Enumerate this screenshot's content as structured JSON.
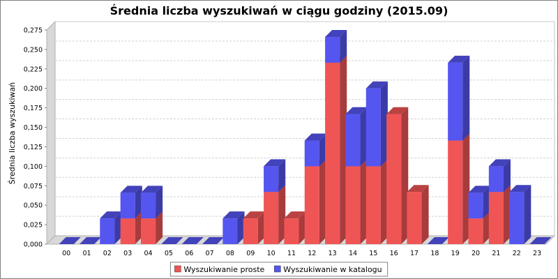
{
  "chart_data": {
    "type": "bar",
    "stacked": true,
    "three_d": true,
    "title": "Średnia liczba wyszukiwań w ciągu godziny (2015.09)",
    "xlabel": "",
    "ylabel": "Średnia liczba wyszukiwań",
    "ylim": [
      0,
      0.275
    ],
    "yticks": [
      "0,000",
      "0,025",
      "0,050",
      "0,075",
      "0,100",
      "0,125",
      "0,150",
      "0,175",
      "0,200",
      "0,225",
      "0,250",
      "0,275"
    ],
    "grid": true,
    "legend_position": "bottom",
    "categories": [
      "00",
      "01",
      "02",
      "03",
      "04",
      "05",
      "06",
      "07",
      "08",
      "09",
      "10",
      "11",
      "12",
      "13",
      "14",
      "15",
      "16",
      "17",
      "18",
      "19",
      "20",
      "21",
      "22",
      "23"
    ],
    "series": [
      {
        "name": "Wyszukiwanie proste",
        "color": "#f05555",
        "values": [
          0,
          0,
          0,
          0.033,
          0.033,
          0,
          0,
          0,
          0,
          0.033,
          0.067,
          0.033,
          0.1,
          0.233,
          0.1,
          0.1,
          0.167,
          0.067,
          0,
          0.133,
          0.033,
          0.067,
          0,
          0
        ]
      },
      {
        "name": "Wyszukiwanie w katalogu",
        "color": "#5555f0",
        "values": [
          0,
          0,
          0.033,
          0.033,
          0.033,
          0,
          0,
          0,
          0.033,
          0,
          0.033,
          0,
          0.033,
          0.033,
          0.067,
          0.1,
          0,
          0,
          0,
          0.1,
          0.033,
          0.033,
          0.067,
          0
        ]
      }
    ]
  }
}
